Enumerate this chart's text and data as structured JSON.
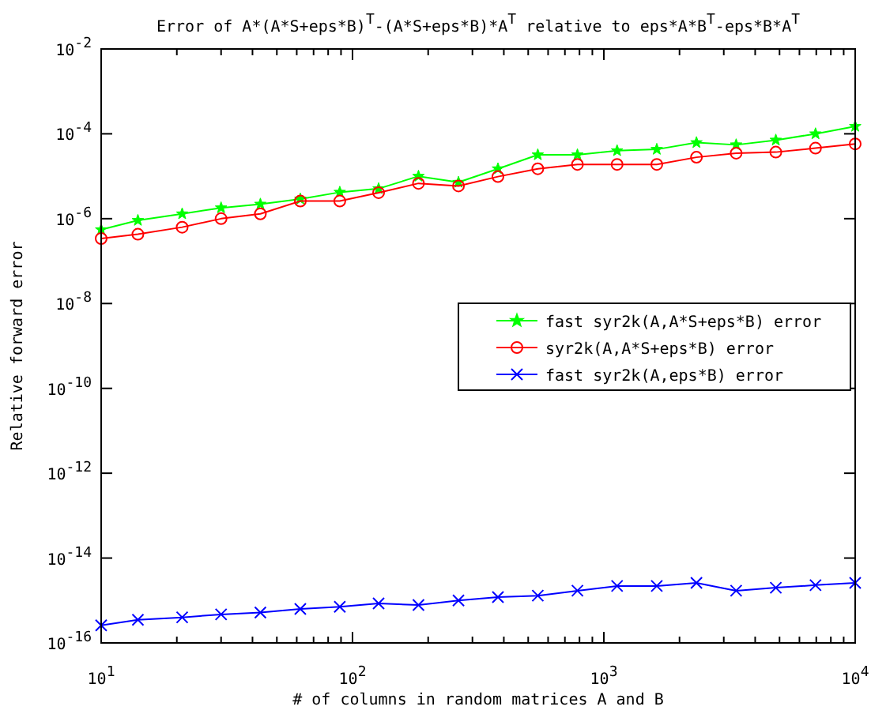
{
  "chart_data": {
    "type": "line",
    "title": "Error of A*(A*S+eps*B)$^{T}$-(A*S+eps*B)*A$^{T}$ relative to eps*A*B$^{T}$-eps*B*A$^{T}$",
    "xlabel": "# of columns in random matrices A and B",
    "ylabel": "Relative forward error",
    "log": "xy",
    "grid": false,
    "legend": "right",
    "line_style": "solid",
    "x": [
      10,
      14,
      21,
      30,
      43,
      62,
      89,
      127,
      183,
      264,
      379,
      546,
      785,
      1129,
      1624,
      2336,
      3360,
      4833,
      6952,
      10000
    ],
    "xlim": [
      10,
      10000
    ],
    "ylim": [
      1e-16,
      0.01
    ],
    "xticks": [
      {
        "value": 10,
        "label": "10$^{1}$"
      },
      {
        "value": 20,
        "label": null
      },
      {
        "value": 30,
        "label": null
      },
      {
        "value": 40,
        "label": null
      },
      {
        "value": 50,
        "label": null
      },
      {
        "value": 60,
        "label": null
      },
      {
        "value": 70,
        "label": null
      },
      {
        "value": 80,
        "label": null
      },
      {
        "value": 90,
        "label": null
      },
      {
        "value": 100,
        "label": "10$^{2}$"
      },
      {
        "value": 200,
        "label": null
      },
      {
        "value": 300,
        "label": null
      },
      {
        "value": 400,
        "label": null
      },
      {
        "value": 500,
        "label": null
      },
      {
        "value": 600,
        "label": null
      },
      {
        "value": 700,
        "label": null
      },
      {
        "value": 800,
        "label": null
      },
      {
        "value": 900,
        "label": null
      },
      {
        "value": 1000,
        "label": "10$^{3}$"
      },
      {
        "value": 2000,
        "label": null
      },
      {
        "value": 3000,
        "label": null
      },
      {
        "value": 4000,
        "label": null
      },
      {
        "value": 5000,
        "label": null
      },
      {
        "value": 6000,
        "label": null
      },
      {
        "value": 7000,
        "label": null
      },
      {
        "value": 8000,
        "label": null
      },
      {
        "value": 9000,
        "label": null
      },
      {
        "value": 10000,
        "label": "10$^{4}$"
      }
    ],
    "yticks": [
      {
        "value": 1e-16,
        "label": "10$^{-16}$"
      },
      {
        "value": 1e-14,
        "label": "10$^{-14}$"
      },
      {
        "value": 1e-12,
        "label": "10$^{-12}$"
      },
      {
        "value": 1e-10,
        "label": "10$^{-10}$"
      },
      {
        "value": 1e-08,
        "label": "10$^{-8}$"
      },
      {
        "value": 1e-06,
        "label": "10$^{-6}$"
      },
      {
        "value": 0.0001,
        "label": "10$^{-4}$"
      },
      {
        "value": 0.01,
        "label": "10$^{-2}$"
      }
    ],
    "series": [
      {
        "name": "fast syr2k(A,A*S+eps*B) error",
        "color": "#00ff00",
        "marker": "star",
        "values": [
          5.5e-07,
          9.1e-07,
          1.3e-06,
          1.8e-06,
          2.2e-06,
          2.9e-06,
          4.2e-06,
          5.1e-06,
          1e-05,
          7.2e-06,
          1.5e-05,
          3.2e-05,
          3.2e-05,
          4e-05,
          4.3e-05,
          6.2e-05,
          5.5e-05,
          7.1e-05,
          0.0001,
          0.00015
        ]
      },
      {
        "name": "syr2k(A,A*S+eps*B) error",
        "color": "#ff0000",
        "marker": "circle",
        "values": [
          3.4e-07,
          4.3e-07,
          6.3e-07,
          1e-06,
          1.3e-06,
          2.6e-06,
          2.6e-06,
          4.1e-06,
          6.8e-06,
          5.9e-06,
          9.8e-06,
          1.5e-05,
          1.9e-05,
          1.9e-05,
          1.9e-05,
          2.8e-05,
          3.5e-05,
          3.7e-05,
          4.6e-05,
          5.8e-05
        ]
      },
      {
        "name": "fast syr2k(A,eps*B) error",
        "color": "#0000ff",
        "marker": "cross",
        "values": [
          2.6e-16,
          3.5e-16,
          4e-16,
          4.7e-16,
          5.2e-16,
          6.3e-16,
          7.1e-16,
          8.5e-16,
          7.8e-16,
          1e-15,
          1.2e-15,
          1.3e-15,
          1.7e-15,
          2.2e-15,
          2.2e-15,
          2.6e-15,
          1.7e-15,
          2e-15,
          2.3e-15,
          2.6e-15
        ]
      }
    ]
  }
}
